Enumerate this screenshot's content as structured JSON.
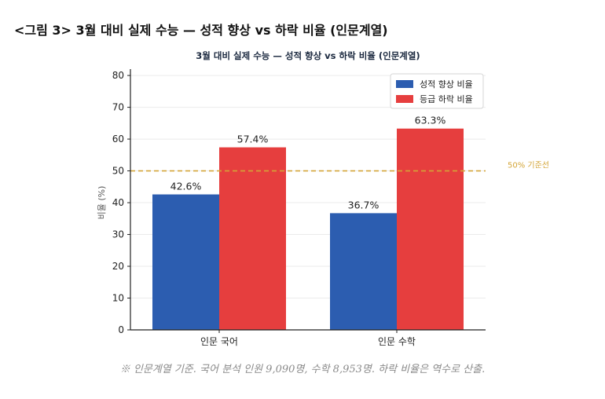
{
  "figure_title": "<그림 3> 3월 대비 실제 수능 — 성적 향상 vs 하락 비율 (인문계열)",
  "footnote": "※ 인문계열 기준. 국어 분석 인원 9,090명, 수학 8,953명. 하락 비율은 역수로 산출.",
  "colors": {
    "improve": "#2c5db0",
    "decline": "#e63e3e",
    "reference": "#d4a537",
    "axis": "#222222",
    "grid": "#ebebeb"
  },
  "chart_data": {
    "type": "bar",
    "title": "3월 대비 실제 수능 — 성적 향상 vs 하락 비율 (인문계열)",
    "xlabel": "",
    "ylabel": "비율 (%)",
    "ylim": [
      0,
      82
    ],
    "yticks": [
      0,
      10,
      20,
      30,
      40,
      50,
      60,
      70,
      80
    ],
    "categories": [
      "인문 국어",
      "인문 수학"
    ],
    "series": [
      {
        "name": "성적 향상 비율",
        "values": [
          42.6,
          36.7
        ],
        "labels": [
          "42.6%",
          "36.7%"
        ]
      },
      {
        "name": "등급 하락 비율",
        "values": [
          57.4,
          63.3
        ],
        "labels": [
          "57.4%",
          "63.3%"
        ]
      }
    ],
    "reference_line": {
      "value": 50,
      "label": "50% 기준선"
    },
    "legend_position": "top-right",
    "grid": "y"
  }
}
